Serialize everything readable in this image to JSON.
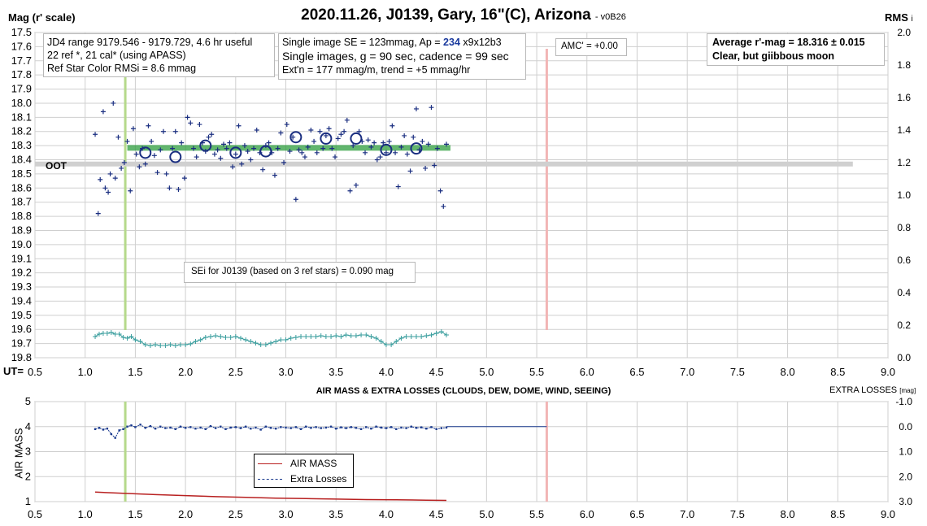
{
  "title": "2020.11.26, J0139, Gary, 16\"(C), Arizona",
  "version": "- v0B26",
  "left_axis_label": "Mag (r' scale)",
  "right_axis_label": "RMS",
  "right_axis_suffix": "i",
  "ut_label": "UT=",
  "oot_label": "OOT",
  "info_box_1": [
    "JD4 range 9179.546 - 9179.729, 4.6 hr useful",
    "22 ref *, 21 cal* (using APASS)",
    "Ref Star Color RMSi = 8.6 mmag"
  ],
  "info_box_2": {
    "line1_prefix": "Single image SE = 123mmag, Ap = ",
    "line1_ap": "234",
    "line1_suffix": " x9x12b3",
    "line2": "Single images, g = 90 sec, cadence = 99 sec",
    "line3": "Ext'n = 177 mmag/m, trend = +5 mmag/hr"
  },
  "amc_label": "AMC' = +0.00",
  "average_box": [
    "Average r'-mag =  18.316 ± 0.015",
    "Clear, but giibbous moon"
  ],
  "sei_label": "SEi for J0139 (based on 3 ref stars) = 0.090 mag",
  "bottom_title": "AIR MASS & EXTRA LOSSES (CLOUDS, DEW, DOME, WIND, SEEING)",
  "bottom_right_label": "EXTRA LOSSES",
  "bottom_right_unit": "[mag]",
  "bottom_left_label": "AIR MASS",
  "legend": [
    "AIR MASS",
    "Extra Losses"
  ],
  "colors": {
    "points": "#1a2e80",
    "average_line": "#2e9e3e",
    "oot_line": "#d0d0d0",
    "green_marker": "#b5d98b",
    "red_marker": "#f2b5b5",
    "rms": "#3a9e9e",
    "airmass": "#b82020",
    "extra_losses": "#1a3a8e"
  },
  "chart_data": [
    {
      "type": "scatter",
      "title": "2020.11.26, J0139, Gary, 16\"(C), Arizona",
      "xlabel": "UT",
      "ylabel": "Mag (r' scale)",
      "xlim": [
        0.5,
        9.0
      ],
      "ylim": [
        19.8,
        17.5
      ],
      "y2lim": [
        0.0,
        2.0
      ],
      "y2label": "RMSi",
      "grid": true,
      "x_ticks": [
        0.5,
        1.0,
        1.5,
        2.0,
        2.5,
        3.0,
        3.5,
        4.0,
        4.5,
        5.0,
        5.5,
        6.0,
        6.5,
        7.0,
        7.5,
        8.0,
        8.5,
        9.0
      ],
      "y_ticks": [
        17.5,
        17.6,
        17.7,
        17.8,
        17.9,
        18.0,
        18.1,
        18.2,
        18.3,
        18.4,
        18.5,
        18.6,
        18.7,
        18.8,
        18.9,
        19.0,
        19.1,
        19.2,
        19.3,
        19.4,
        19.5,
        19.6,
        19.7,
        19.8
      ],
      "y2_ticks": [
        0.0,
        0.2,
        0.4,
        0.6,
        0.8,
        1.0,
        1.2,
        1.4,
        1.6,
        1.8,
        2.0
      ],
      "series": [
        {
          "type": "scatter",
          "x": [
            1.1,
            1.13,
            1.15,
            1.18,
            1.2,
            1.23,
            1.25,
            1.28,
            1.3,
            1.33,
            1.36,
            1.39,
            1.42,
            1.45,
            1.48,
            1.51,
            1.54,
            1.57,
            1.6,
            1.63,
            1.66,
            1.69,
            1.72,
            1.75,
            1.78,
            1.81,
            1.84,
            1.87,
            1.9,
            1.93,
            1.96,
            1.99,
            2.02,
            2.05,
            2.08,
            2.11,
            2.14,
            2.17,
            2.2,
            2.23,
            2.26,
            2.29,
            2.32,
            2.35,
            2.38,
            2.41,
            2.44,
            2.47,
            2.5,
            2.53,
            2.56,
            2.59,
            2.62,
            2.65,
            2.68,
            2.71,
            2.74,
            2.77,
            2.8,
            2.83,
            2.86,
            2.89,
            2.92,
            2.95,
            2.98,
            3.01,
            3.04,
            3.07,
            3.1,
            3.13,
            3.16,
            3.19,
            3.22,
            3.25,
            3.28,
            3.31,
            3.34,
            3.37,
            3.4,
            3.43,
            3.46,
            3.49,
            3.52,
            3.55,
            3.58,
            3.61,
            3.64,
            3.67,
            3.7,
            3.73,
            3.76,
            3.79,
            3.82,
            3.85,
            3.88,
            3.91,
            3.94,
            3.97,
            4.0,
            4.03,
            4.06,
            4.09,
            4.12,
            4.15,
            4.18,
            4.21,
            4.24,
            4.27,
            4.3,
            4.33,
            4.36,
            4.39,
            4.42,
            4.45,
            4.48,
            4.51,
            4.54,
            4.57,
            4.6
          ],
          "y": [
            18.22,
            18.78,
            18.54,
            18.06,
            18.6,
            18.63,
            18.5,
            18.0,
            18.53,
            18.24,
            18.46,
            18.42,
            18.27,
            18.62,
            18.18,
            18.36,
            18.45,
            18.32,
            18.43,
            18.16,
            18.27,
            18.37,
            18.49,
            18.33,
            18.2,
            18.5,
            18.6,
            18.32,
            18.2,
            18.61,
            18.28,
            18.53,
            18.1,
            18.14,
            18.32,
            18.38,
            18.15,
            18.28,
            18.34,
            18.24,
            18.22,
            18.36,
            18.33,
            18.39,
            18.29,
            18.32,
            18.28,
            18.45,
            18.36,
            18.16,
            18.43,
            18.3,
            18.34,
            18.4,
            18.32,
            18.19,
            18.35,
            18.47,
            18.3,
            18.28,
            18.35,
            18.51,
            18.32,
            18.21,
            18.42,
            18.15,
            18.34,
            18.24,
            18.68,
            18.33,
            18.35,
            18.38,
            18.31,
            18.19,
            18.27,
            18.35,
            18.2,
            18.32,
            18.23,
            18.18,
            18.32,
            18.38,
            18.25,
            18.22,
            18.2,
            18.12,
            18.62,
            18.3,
            18.58,
            18.2,
            18.27,
            18.35,
            18.26,
            18.31,
            18.28,
            18.4,
            18.38,
            18.28,
            18.35,
            18.27,
            18.16,
            18.35,
            18.59,
            18.31,
            18.23,
            18.36,
            18.48,
            18.24,
            18.04,
            18.33,
            18.27,
            18.46,
            18.29,
            18.03,
            18.44,
            18.32,
            18.62,
            18.73,
            18.29
          ]
        },
        {
          "type": "scatter",
          "name": "",
          "x": [
            1.6,
            1.9,
            2.2,
            2.5,
            2.8,
            3.1,
            3.4,
            3.7,
            4.0,
            4.3
          ],
          "y": [
            18.35,
            18.38,
            18.3,
            18.35,
            18.34,
            18.24,
            18.25,
            18.25,
            18.33,
            18.32
          ]
        },
        {
          "type": "line",
          "x": [
            1.42,
            4.64
          ],
          "y": [
            18.316,
            18.316
          ]
        },
        {
          "type": "line",
          "x": [
            0.5,
            8.65
          ],
          "y": [
            18.43,
            18.43
          ]
        },
        {
          "type": "line",
          "axis": "y2",
          "x": [
            1.1,
            1.14,
            1.18,
            1.22,
            1.26,
            1.3,
            1.34,
            1.38,
            1.42,
            1.46,
            1.5,
            1.55,
            1.6,
            1.65,
            1.7,
            1.75,
            1.8,
            1.85,
            1.9,
            1.95,
            2.0,
            2.05,
            2.1,
            2.15,
            2.2,
            2.25,
            2.3,
            2.35,
            2.4,
            2.45,
            2.5,
            2.55,
            2.6,
            2.65,
            2.7,
            2.75,
            2.8,
            2.85,
            2.9,
            2.95,
            3.0,
            3.05,
            3.1,
            3.15,
            3.2,
            3.25,
            3.3,
            3.35,
            3.4,
            3.45,
            3.5,
            3.55,
            3.6,
            3.65,
            3.7,
            3.75,
            3.8,
            3.85,
            3.9,
            3.95,
            4.0,
            4.05,
            4.1,
            4.15,
            4.2,
            4.25,
            4.3,
            4.35,
            4.4,
            4.45,
            4.5,
            4.55,
            4.6
          ],
          "y": [
            0.13,
            0.145,
            0.15,
            0.15,
            0.155,
            0.145,
            0.145,
            0.125,
            0.12,
            0.13,
            0.11,
            0.1,
            0.08,
            0.075,
            0.08,
            0.075,
            0.075,
            0.08,
            0.075,
            0.08,
            0.08,
            0.085,
            0.1,
            0.11,
            0.125,
            0.13,
            0.135,
            0.13,
            0.125,
            0.125,
            0.13,
            0.12,
            0.11,
            0.1,
            0.09,
            0.08,
            0.08,
            0.09,
            0.1,
            0.11,
            0.11,
            0.12,
            0.125,
            0.13,
            0.13,
            0.13,
            0.13,
            0.135,
            0.13,
            0.13,
            0.135,
            0.13,
            0.14,
            0.135,
            0.135,
            0.14,
            0.14,
            0.13,
            0.12,
            0.1,
            0.08,
            0.08,
            0.1,
            0.12,
            0.13,
            0.13,
            0.13,
            0.13,
            0.135,
            0.14,
            0.15,
            0.16,
            0.14
          ]
        }
      ]
    },
    {
      "type": "line",
      "title": "AIR MASS & EXTRA LOSSES (CLOUDS, DEW, DOME, WIND, SEEING)",
      "xlabel": "",
      "ylabel": "AIR MASS",
      "xlim": [
        0.5,
        9.0
      ],
      "ylim": [
        1,
        5
      ],
      "y2lim": [
        3.0,
        -1.0
      ],
      "y2label": "EXTRA LOSSES [mag]",
      "grid": true,
      "legend": "inside",
      "x_ticks": [
        0.5,
        1.0,
        1.5,
        2.0,
        2.5,
        3.0,
        3.5,
        4.0,
        4.5,
        5.0,
        5.5,
        6.0,
        6.5,
        7.0,
        7.5,
        8.0,
        8.5,
        9.0
      ],
      "y_ticks": [
        1,
        2,
        3,
        4,
        5
      ],
      "y2_ticks": [
        -1.0,
        0.0,
        1.0,
        2.0,
        3.0
      ],
      "series": [
        {
          "name": "AIR MASS",
          "x": [
            1.1,
            1.4,
            1.7,
            2.0,
            2.3,
            2.6,
            2.9,
            3.2,
            3.5,
            3.8,
            4.1,
            4.4,
            4.6
          ],
          "y": [
            1.38,
            1.33,
            1.28,
            1.24,
            1.2,
            1.17,
            1.14,
            1.12,
            1.1,
            1.08,
            1.07,
            1.06,
            1.05
          ]
        },
        {
          "name": "Extra Losses",
          "x": [
            1.1,
            1.14,
            1.18,
            1.22,
            1.26,
            1.3,
            1.34,
            1.38,
            1.42,
            1.46,
            1.5,
            1.55,
            1.6,
            1.65,
            1.7,
            1.75,
            1.8,
            1.85,
            1.9,
            1.95,
            2.0,
            2.05,
            2.1,
            2.15,
            2.2,
            2.25,
            2.3,
            2.35,
            2.4,
            2.45,
            2.5,
            2.55,
            2.6,
            2.65,
            2.7,
            2.75,
            2.8,
            2.85,
            2.9,
            2.95,
            3.0,
            3.05,
            3.1,
            3.15,
            3.2,
            3.25,
            3.3,
            3.35,
            3.4,
            3.45,
            3.5,
            3.55,
            3.6,
            3.65,
            3.7,
            3.75,
            3.8,
            3.85,
            3.9,
            3.95,
            4.0,
            4.05,
            4.1,
            4.15,
            4.2,
            4.25,
            4.3,
            4.35,
            4.4,
            4.45,
            4.5,
            4.55,
            4.6
          ],
          "y": [
            0.1,
            0.05,
            0.12,
            0.08,
            0.3,
            0.45,
            0.15,
            0.1,
            0.0,
            -0.05,
            0.02,
            -0.08,
            0.05,
            -0.02,
            0.08,
            0.0,
            0.06,
            0.04,
            0.1,
            0.0,
            0.05,
            0.02,
            0.08,
            0.04,
            0.1,
            -0.02,
            0.06,
            0.0,
            0.1,
            0.04,
            0.02,
            0.06,
            0.0,
            0.08,
            0.04,
            0.12,
            0.0,
            0.05,
            0.08,
            0.02,
            0.04,
            0.06,
            0.02,
            0.1,
            0.0,
            0.05,
            0.02,
            0.06,
            0.04,
            0.0,
            0.08,
            0.03,
            0.06,
            0.02,
            0.05,
            0.1,
            0.02,
            0.08,
            0.0,
            0.04,
            0.06,
            0.02,
            0.1,
            0.04,
            0.06,
            0.0,
            0.05,
            0.03,
            0.08,
            0.02,
            0.1,
            0.06,
            0.04
          ]
        },
        {
          "name": "",
          "x": [
            4.6,
            5.6
          ],
          "y": [
            0.0,
            0.0
          ]
        }
      ]
    }
  ]
}
